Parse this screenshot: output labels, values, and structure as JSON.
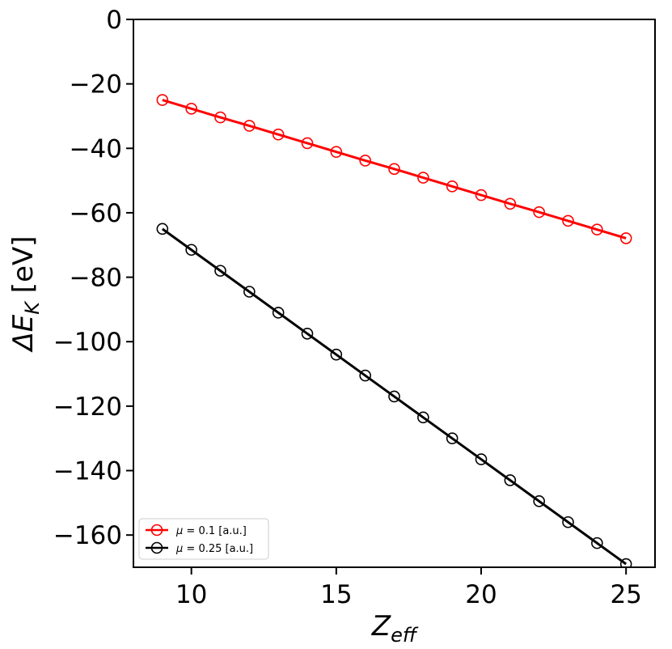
{
  "chart_data": {
    "type": "line",
    "title": "",
    "xlabel": {
      "main": "Z",
      "sub": "eff"
    },
    "ylabel": {
      "prefix": "ΔE",
      "sub": "K",
      "suffix": " [eV]"
    },
    "xlim": [
      8,
      26
    ],
    "ylim": [
      -170,
      0
    ],
    "xticks": [
      10,
      15,
      20,
      25
    ],
    "yticks": [
      0,
      -20,
      -40,
      -60,
      -80,
      -100,
      -120,
      -140,
      -160
    ],
    "grid": false,
    "legend_position": "lower-left",
    "x": [
      9,
      10,
      11,
      12,
      13,
      14,
      15,
      16,
      17,
      18,
      19,
      20,
      21,
      22,
      23,
      24,
      25
    ],
    "series": [
      {
        "name": "μ = 0.1 [a.u.]",
        "color": "#ff0000",
        "marker": "open-circle",
        "values": [
          -25.0,
          -27.7,
          -30.4,
          -33.0,
          -35.7,
          -38.4,
          -41.1,
          -43.8,
          -46.4,
          -49.1,
          -51.8,
          -54.5,
          -57.2,
          -59.8,
          -62.5,
          -65.2,
          -67.9
        ]
      },
      {
        "name": "μ = 0.25 [a.u.]",
        "color": "#000000",
        "marker": "open-circle",
        "values": [
          -65.0,
          -71.5,
          -78.0,
          -84.5,
          -91.0,
          -97.5,
          -104.0,
          -110.5,
          -117.0,
          -123.5,
          -130.0,
          -136.5,
          -143.0,
          -149.5,
          -156.0,
          -162.5,
          -169.0
        ]
      }
    ]
  }
}
